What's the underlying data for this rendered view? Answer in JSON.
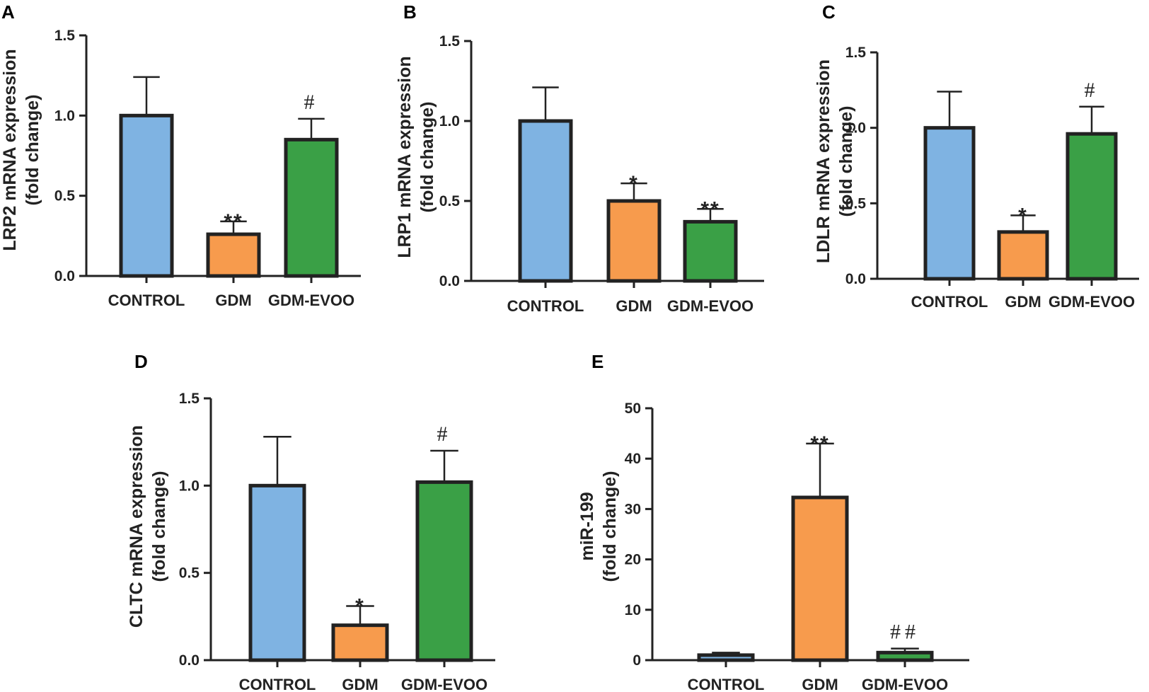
{
  "colors": {
    "control": "#7fb3e2",
    "gdm": "#f79b4d",
    "evoo": "#3aa046",
    "stroke": "#222222"
  },
  "chart_data": [
    {
      "id": "A",
      "type": "bar",
      "letter": "A",
      "ylabel_line1": "LRP2 mRNA expression",
      "ylabel_line2": "(fold change)",
      "categories": [
        "CONTROL",
        "GDM",
        "GDM-EVOO"
      ],
      "values": [
        1.0,
        0.26,
        0.85
      ],
      "errors": [
        0.24,
        0.08,
        0.13
      ],
      "annotations": [
        "",
        "**",
        "#"
      ],
      "ylim": [
        0,
        1.5
      ],
      "yticks": [
        0,
        0.5,
        1.0,
        1.5
      ],
      "ytick_labels": [
        "0.0",
        "0.5",
        "1.0",
        "1.5"
      ]
    },
    {
      "id": "B",
      "type": "bar",
      "letter": "B",
      "ylabel_line1": "LRP1 mRNA expression",
      "ylabel_line2": "(fold change)",
      "categories": [
        "CONTROL",
        "GDM",
        "GDM-EVOO"
      ],
      "values": [
        1.0,
        0.5,
        0.37
      ],
      "errors": [
        0.21,
        0.11,
        0.08
      ],
      "annotations": [
        "",
        "*",
        "**"
      ],
      "ylim": [
        0,
        1.5
      ],
      "yticks": [
        0,
        0.5,
        1.0,
        1.5
      ],
      "ytick_labels": [
        "0.0",
        "0.5",
        "1.0",
        "1.5"
      ]
    },
    {
      "id": "C",
      "type": "bar",
      "letter": "C",
      "ylabel_line1": "LDLR mRNA expression",
      "ylabel_line2": "(fold change)",
      "categories": [
        "CONTROL",
        "GDM",
        "GDM-EVOO"
      ],
      "values": [
        1.0,
        0.31,
        0.96
      ],
      "errors": [
        0.24,
        0.11,
        0.18
      ],
      "annotations": [
        "",
        "*",
        "#"
      ],
      "ylim": [
        0,
        1.5
      ],
      "yticks": [
        0,
        0.5,
        1.0,
        1.5
      ],
      "ytick_labels": [
        "0.0",
        "0.5",
        "1.0",
        "1.5"
      ]
    },
    {
      "id": "D",
      "type": "bar",
      "letter": "D",
      "ylabel_line1": "CLTC mRNA expression",
      "ylabel_line2": "(fold change)",
      "categories": [
        "CONTROL",
        "GDM",
        "GDM-EVOO"
      ],
      "values": [
        1.0,
        0.2,
        1.02
      ],
      "errors": [
        0.28,
        0.11,
        0.18
      ],
      "annotations": [
        "",
        "*",
        "#"
      ],
      "ylim": [
        0,
        1.5
      ],
      "yticks": [
        0,
        0.5,
        1.0,
        1.5
      ],
      "ytick_labels": [
        "0.0",
        "0.5",
        "1.0",
        "1.5"
      ]
    },
    {
      "id": "E",
      "type": "bar",
      "letter": "E",
      "ylabel_line1": "miR-199",
      "ylabel_line2": "(fold change)",
      "categories": [
        "CONTROL",
        "GDM",
        "GDM-EVOO"
      ],
      "values": [
        1.0,
        32.3,
        1.5
      ],
      "errors": [
        0.5,
        10.7,
        0.8
      ],
      "annotations": [
        "",
        "**",
        "##"
      ],
      "ylim": [
        0,
        50
      ],
      "yticks": [
        0,
        10,
        20,
        30,
        40,
        50
      ],
      "ytick_labels": [
        "0",
        "10",
        "20",
        "30",
        "40",
        "50"
      ]
    }
  ]
}
